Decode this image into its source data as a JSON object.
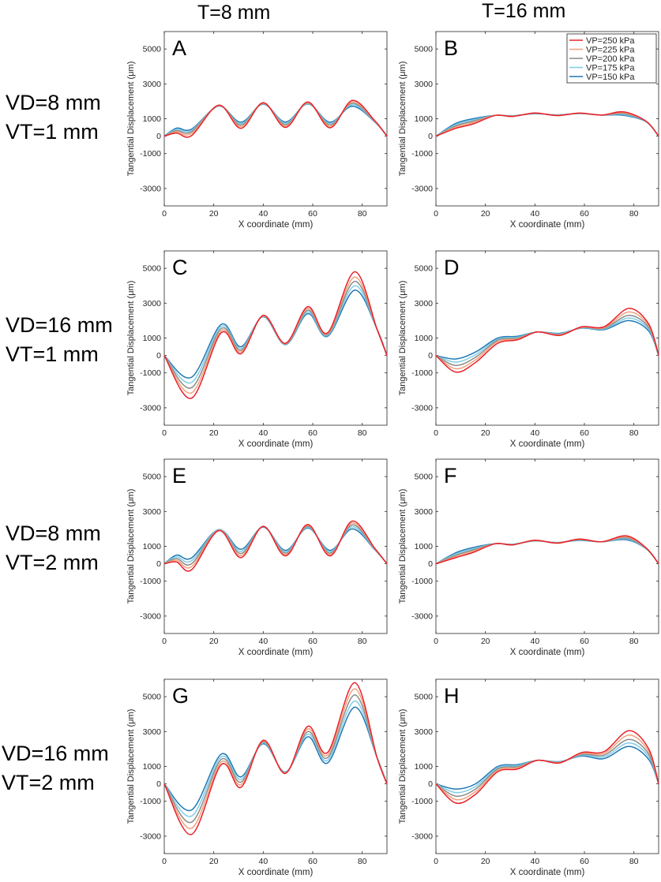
{
  "column_headers": [
    "T=8 mm",
    "T=16 mm"
  ],
  "row_labels": [
    [
      "VD=8 mm",
      "VT=1 mm"
    ],
    [
      "VD=16 mm",
      "VT=1 mm"
    ],
    [
      "VD=8 mm",
      "VT=2 mm"
    ],
    [
      "VD=16 mm",
      "VT=2 mm"
    ]
  ],
  "chart_data": {
    "type": "line",
    "xlabel": "X coordinate (mm)",
    "ylabel": "Tangential Displacement (μm)",
    "xlim": [
      0,
      90
    ],
    "ylim": [
      -4000,
      6000
    ],
    "xticks": [
      0,
      20,
      40,
      60,
      80
    ],
    "yticks": [
      -3000,
      -1000,
      0,
      1000,
      3000,
      5000
    ],
    "legend": {
      "location": "top-right",
      "entries": [
        "VP=250 kPa",
        "VP=225 kPa",
        "VP=200 kPa",
        "VP=175 kPa",
        "VP=150 kPa"
      ]
    },
    "series_colors": {
      "VP=250 kPa": "#e8202a",
      "VP=225 kPa": "#f2a07a",
      "VP=200 kPa": "#8a8a8a",
      "VP=175 kPa": "#7fcde6",
      "VP=150 kPa": "#1f78b4"
    },
    "panels": [
      {
        "label": "A",
        "x": [
          0,
          5,
          11,
          22,
          31,
          40,
          49,
          58,
          67,
          76,
          85,
          90
        ],
        "series": [
          {
            "name": "VP=250 kPa",
            "values": [
              0,
              180,
              30,
              1780,
              450,
              1920,
              500,
              1960,
              480,
              2050,
              900,
              0
            ]
          },
          {
            "name": "VP=225 kPa",
            "values": [
              0,
              250,
              150,
              1760,
              550,
              1900,
              580,
              1930,
              560,
              1960,
              880,
              0
            ]
          },
          {
            "name": "VP=200 kPa",
            "values": [
              0,
              320,
              250,
              1750,
              640,
              1880,
              660,
              1900,
              650,
              1880,
              860,
              0
            ]
          },
          {
            "name": "VP=175 kPa",
            "values": [
              0,
              390,
              330,
              1730,
              720,
              1860,
              740,
              1870,
              730,
              1800,
              840,
              0
            ]
          },
          {
            "name": "VP=150 kPa",
            "values": [
              0,
              460,
              400,
              1720,
              800,
              1840,
              810,
              1850,
              800,
              1720,
              820,
              0
            ]
          }
        ]
      },
      {
        "label": "B",
        "x": [
          0,
          8,
          15,
          24,
          31,
          40,
          49,
          58,
          67,
          76,
          85,
          90
        ],
        "series": [
          {
            "name": "VP=250 kPa",
            "values": [
              0,
              450,
              700,
              1190,
              1130,
              1330,
              1180,
              1320,
              1210,
              1390,
              850,
              0
            ]
          },
          {
            "name": "VP=225 kPa",
            "values": [
              0,
              520,
              780,
              1190,
              1140,
              1320,
              1190,
              1320,
              1210,
              1340,
              850,
              0
            ]
          },
          {
            "name": "VP=200 kPa",
            "values": [
              0,
              590,
              860,
              1190,
              1150,
              1310,
              1200,
              1310,
              1210,
              1290,
              840,
              0
            ]
          },
          {
            "name": "VP=175 kPa",
            "values": [
              0,
              660,
              930,
              1190,
              1160,
              1300,
              1210,
              1300,
              1210,
              1240,
              830,
              0
            ]
          },
          {
            "name": "VP=150 kPa",
            "values": [
              0,
              730,
              1000,
              1190,
              1170,
              1290,
              1220,
              1300,
              1210,
              1190,
              820,
              0
            ]
          }
        ]
      },
      {
        "label": "C",
        "x": [
          0,
          11,
          23,
          31,
          40,
          49,
          58,
          66,
          77,
          86,
          90
        ],
        "series": [
          {
            "name": "VP=250 kPa",
            "values": [
              0,
              -2450,
              1300,
              100,
              2300,
              700,
              2800,
              1300,
              4800,
              1500,
              0
            ]
          },
          {
            "name": "VP=225 kPa",
            "values": [
              0,
              -2150,
              1420,
              200,
              2280,
              680,
              2700,
              1250,
              4500,
              1500,
              0
            ]
          },
          {
            "name": "VP=200 kPa",
            "values": [
              0,
              -1850,
              1540,
              300,
              2260,
              660,
              2600,
              1200,
              4250,
              1500,
              0
            ]
          },
          {
            "name": "VP=175 kPa",
            "values": [
              0,
              -1550,
              1660,
              400,
              2240,
              640,
              2500,
              1150,
              4000,
              1500,
              0
            ]
          },
          {
            "name": "VP=150 kPa",
            "values": [
              0,
              -1250,
              1780,
              500,
              2220,
              620,
              2400,
              1100,
              3750,
              1500,
              0
            ]
          }
        ]
      },
      {
        "label": "D",
        "x": [
          0,
          8,
          16,
          25,
          33,
          41,
          50,
          59,
          68,
          78,
          86,
          90
        ],
        "series": [
          {
            "name": "VP=250 kPa",
            "values": [
              0,
              -950,
              -400,
              700,
              900,
              1350,
              1150,
              1650,
              1650,
              2700,
              1800,
              0
            ]
          },
          {
            "name": "VP=225 kPa",
            "values": [
              0,
              -760,
              -250,
              800,
              950,
              1350,
              1180,
              1630,
              1600,
              2500,
              1700,
              0
            ]
          },
          {
            "name": "VP=200 kPa",
            "values": [
              0,
              -570,
              -100,
              880,
              1000,
              1350,
              1210,
              1610,
              1560,
              2300,
              1600,
              0
            ]
          },
          {
            "name": "VP=175 kPa",
            "values": [
              0,
              -380,
              50,
              940,
              1050,
              1350,
              1240,
              1590,
              1520,
              2150,
              1500,
              0
            ]
          },
          {
            "name": "VP=150 kPa",
            "values": [
              0,
              -200,
              200,
              1000,
              1100,
              1350,
              1270,
              1570,
              1480,
              2000,
              1400,
              0
            ]
          }
        ]
      },
      {
        "label": "E",
        "x": [
          0,
          5,
          11,
          22,
          31,
          40,
          49,
          58,
          67,
          76,
          85,
          90
        ],
        "series": [
          {
            "name": "VP=250 kPa",
            "values": [
              0,
              100,
              -350,
              1900,
              350,
              2150,
              450,
              2250,
              450,
              2450,
              900,
              0
            ]
          },
          {
            "name": "VP=225 kPa",
            "values": [
              0,
              200,
              -170,
              1920,
              470,
              2140,
              530,
              2200,
              530,
              2340,
              880,
              0
            ]
          },
          {
            "name": "VP=200 kPa",
            "values": [
              0,
              300,
              0,
              1930,
              590,
              2130,
              610,
              2150,
              610,
              2230,
              860,
              0
            ]
          },
          {
            "name": "VP=175 kPa",
            "values": [
              0,
              400,
              170,
              1950,
              710,
              2120,
              690,
              2100,
              690,
              2120,
              840,
              0
            ]
          },
          {
            "name": "VP=150 kPa",
            "values": [
              0,
              500,
              330,
              1960,
              830,
              2100,
              770,
              2050,
              770,
              2000,
              820,
              0
            ]
          }
        ]
      },
      {
        "label": "F",
        "x": [
          0,
          8,
          15,
          24,
          31,
          40,
          49,
          58,
          67,
          77,
          85,
          90
        ],
        "series": [
          {
            "name": "VP=250 kPa",
            "values": [
              0,
              350,
              650,
              1150,
              1080,
              1350,
              1180,
              1420,
              1260,
              1600,
              900,
              0
            ]
          },
          {
            "name": "VP=225 kPa",
            "values": [
              0,
              420,
              720,
              1150,
              1090,
              1340,
              1190,
              1400,
              1260,
              1540,
              890,
              0
            ]
          },
          {
            "name": "VP=200 kPa",
            "values": [
              0,
              490,
              790,
              1150,
              1100,
              1330,
              1200,
              1380,
              1260,
              1480,
              880,
              0
            ]
          },
          {
            "name": "VP=175 kPa",
            "values": [
              0,
              560,
              860,
              1150,
              1110,
              1320,
              1210,
              1360,
              1260,
              1430,
              870,
              0
            ]
          },
          {
            "name": "VP=150 kPa",
            "values": [
              0,
              630,
              930,
              1150,
              1120,
              1310,
              1220,
              1340,
              1260,
              1380,
              860,
              0
            ]
          }
        ]
      },
      {
        "label": "G",
        "x": [
          0,
          11,
          23,
          31,
          40,
          49,
          58,
          66,
          77,
          86,
          90
        ],
        "series": [
          {
            "name": "VP=250 kPa",
            "values": [
              0,
              -2900,
              1100,
              -200,
              2500,
              600,
              3300,
              1800,
              5800,
              1500,
              0
            ]
          },
          {
            "name": "VP=225 kPa",
            "values": [
              0,
              -2550,
              1250,
              -50,
              2450,
              620,
              3150,
              1650,
              5450,
              1500,
              0
            ]
          },
          {
            "name": "VP=200 kPa",
            "values": [
              0,
              -2200,
              1400,
              100,
              2400,
              640,
              3000,
              1500,
              5100,
              1500,
              0
            ]
          },
          {
            "name": "VP=175 kPa",
            "values": [
              0,
              -1850,
              1550,
              250,
              2350,
              660,
              2850,
              1350,
              4750,
              1500,
              0
            ]
          },
          {
            "name": "VP=150 kPa",
            "values": [
              0,
              -1500,
              1700,
              400,
              2300,
              680,
              2700,
              1200,
              4400,
              1500,
              0
            ]
          }
        ]
      },
      {
        "label": "H",
        "x": [
          0,
          8,
          16,
          25,
          33,
          41,
          50,
          59,
          68,
          78,
          86,
          90
        ],
        "series": [
          {
            "name": "VP=250 kPa",
            "values": [
              0,
              -1100,
              -600,
              700,
              850,
              1350,
              1200,
              1800,
              1850,
              3050,
              2000,
              0
            ]
          },
          {
            "name": "VP=225 kPa",
            "values": [
              0,
              -900,
              -450,
              780,
              920,
              1350,
              1220,
              1750,
              1750,
              2800,
              1850,
              0
            ]
          },
          {
            "name": "VP=200 kPa",
            "values": [
              0,
              -700,
              -300,
              860,
              990,
              1350,
              1240,
              1700,
              1650,
              2550,
              1700,
              0
            ]
          },
          {
            "name": "VP=175 kPa",
            "values": [
              0,
              -500,
              -150,
              930,
              1050,
              1350,
              1260,
              1650,
              1550,
              2350,
              1550,
              0
            ]
          },
          {
            "name": "VP=150 kPa",
            "values": [
              0,
              -300,
              0,
              1000,
              1100,
              1350,
              1280,
              1600,
              1450,
              2150,
              1400,
              0
            ]
          }
        ]
      }
    ]
  }
}
